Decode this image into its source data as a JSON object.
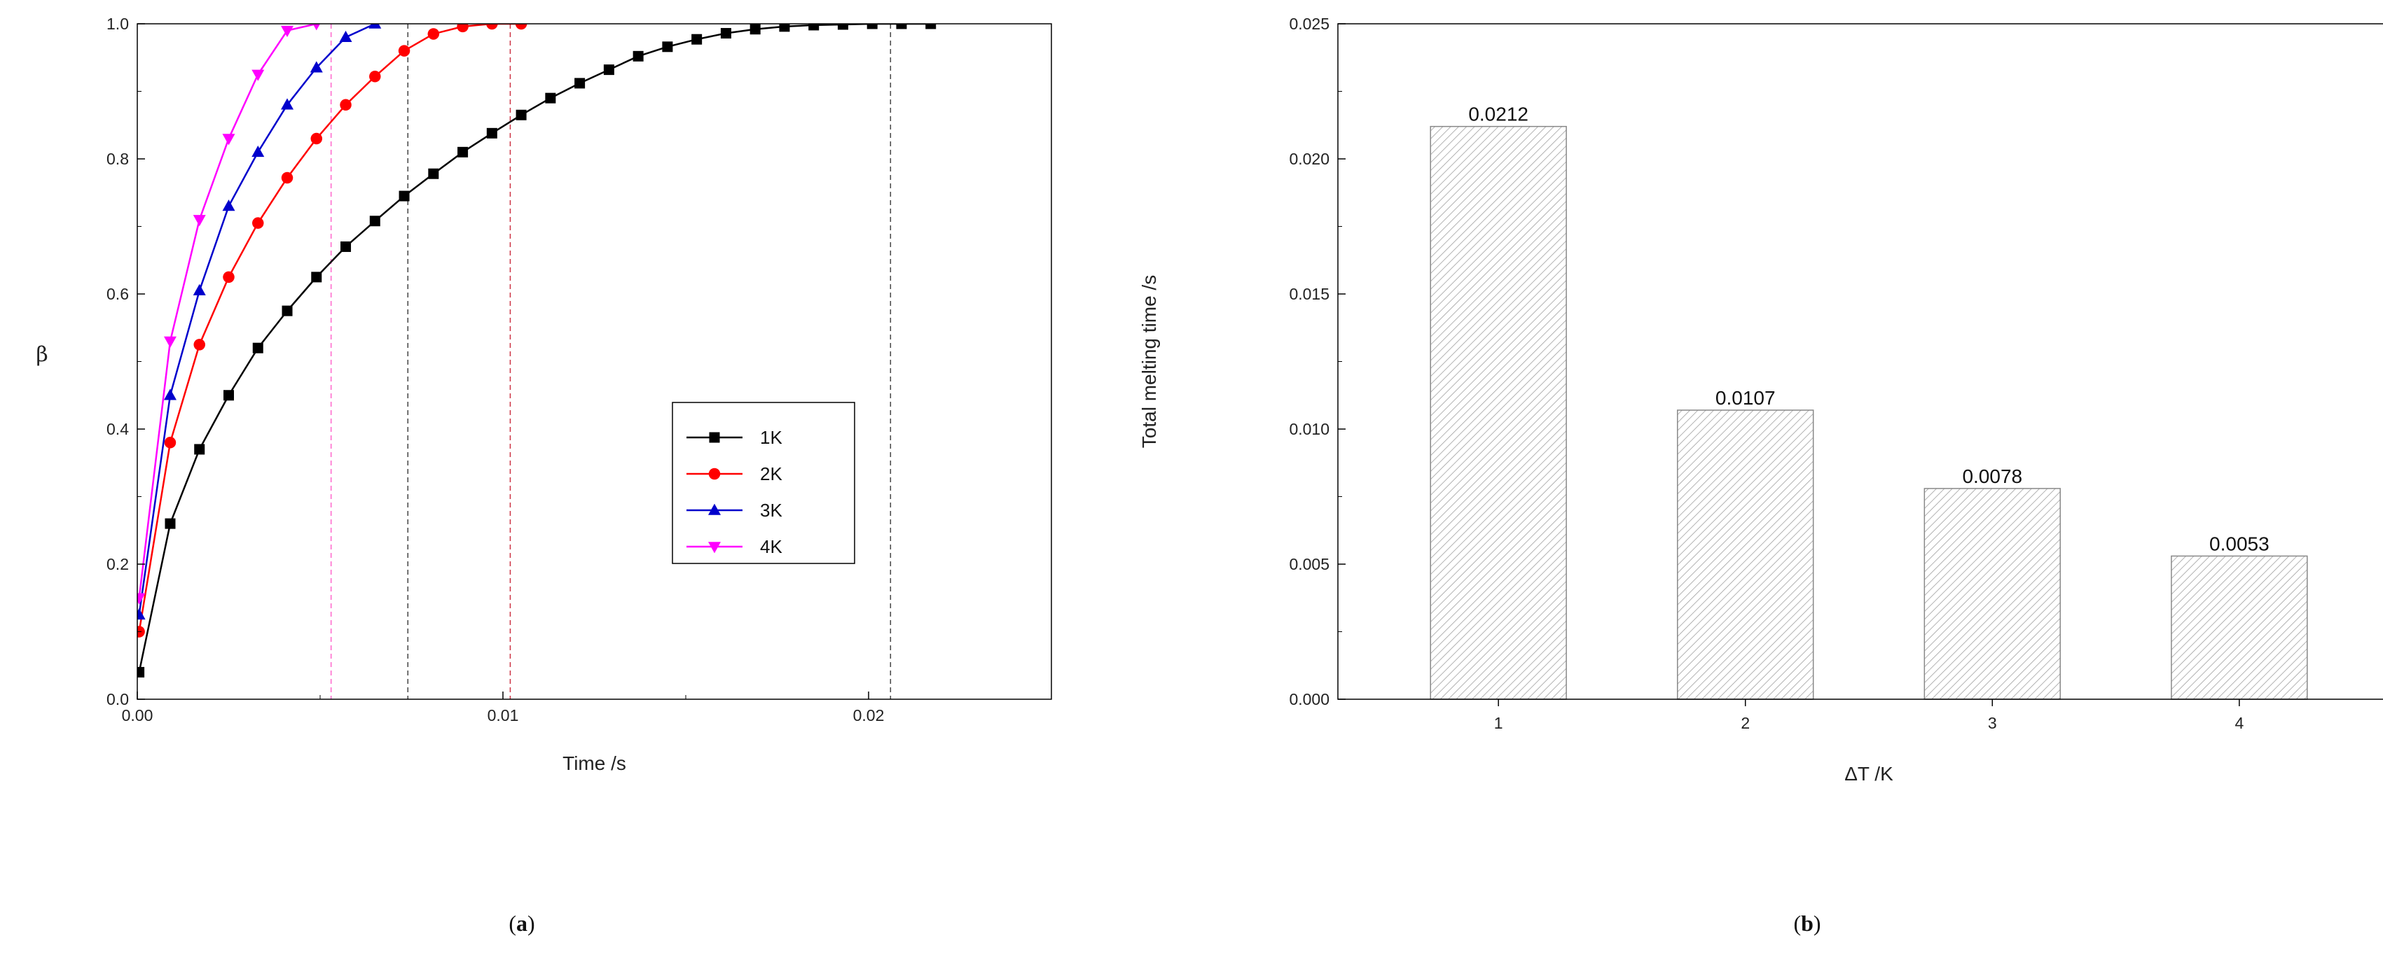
{
  "captions": {
    "a_open": "(",
    "a_letter": "a",
    "a_close": ")",
    "b_open": "(",
    "b_letter": "b",
    "b_close": ")"
  },
  "chart_data": [
    {
      "type": "line",
      "title": "",
      "xlabel": "Time /s",
      "ylabel": "β",
      "xlim": [
        0,
        0.025
      ],
      "ylim": [
        0,
        1.0
      ],
      "xticks": [
        "0.00",
        "0.01",
        "0.02"
      ],
      "yticks": [
        "0.0",
        "0.2",
        "0.4",
        "0.6",
        "0.8",
        "1.0"
      ],
      "legend_position": "bottom-right",
      "series": [
        {
          "name": "1K",
          "color": "#000000",
          "marker": "square",
          "x": [
            5e-05,
            0.0009,
            0.0017,
            0.0025,
            0.0033,
            0.0041,
            0.0049,
            0.0057,
            0.0065,
            0.0073,
            0.0081,
            0.0089,
            0.0097,
            0.0105,
            0.0113,
            0.0121,
            0.0129,
            0.0137,
            0.0145,
            0.0153,
            0.0161,
            0.0169,
            0.0177,
            0.0185,
            0.0193,
            0.0201,
            0.0209,
            0.0217
          ],
          "y": [
            0.04,
            0.26,
            0.37,
            0.45,
            0.52,
            0.575,
            0.625,
            0.67,
            0.708,
            0.745,
            0.778,
            0.81,
            0.838,
            0.865,
            0.89,
            0.912,
            0.932,
            0.952,
            0.966,
            0.977,
            0.986,
            0.992,
            0.996,
            0.998,
            0.999,
            1.0,
            1.0,
            1.0
          ]
        },
        {
          "name": "2K",
          "color": "#ff0000",
          "marker": "circle",
          "x": [
            5e-05,
            0.0009,
            0.0017,
            0.0025,
            0.0033,
            0.0041,
            0.0049,
            0.0057,
            0.0065,
            0.0073,
            0.0081,
            0.0089,
            0.0097,
            0.0105
          ],
          "y": [
            0.1,
            0.38,
            0.525,
            0.625,
            0.705,
            0.772,
            0.83,
            0.88,
            0.922,
            0.96,
            0.985,
            0.996,
            1.0,
            1.0
          ]
        },
        {
          "name": "3K",
          "color": "#0000cc",
          "marker": "triangle-up",
          "x": [
            5e-05,
            0.0009,
            0.0017,
            0.0025,
            0.0033,
            0.0041,
            0.0049,
            0.0057,
            0.0065
          ],
          "y": [
            0.125,
            0.45,
            0.605,
            0.73,
            0.81,
            0.88,
            0.935,
            0.98,
            1.0
          ]
        },
        {
          "name": "4K",
          "color": "#ff00ff",
          "marker": "triangle-down",
          "x": [
            5e-05,
            0.0009,
            0.0017,
            0.0025,
            0.0033,
            0.0041,
            0.0049
          ],
          "y": [
            0.15,
            0.53,
            0.71,
            0.83,
            0.925,
            0.99,
            1.0
          ]
        }
      ],
      "reference_lines": [
        {
          "x": 0.0053,
          "color": "#ff66cc",
          "style": "dashed"
        },
        {
          "x": 0.0074,
          "color": "#444444",
          "style": "dashed"
        },
        {
          "x": 0.0102,
          "color": "#cc3344",
          "style": "dashed"
        },
        {
          "x": 0.0206,
          "color": "#444444",
          "style": "dashed"
        }
      ]
    },
    {
      "type": "bar",
      "title": "",
      "xlabel": "ΔT /K",
      "ylabel": "Total melting time /s",
      "categories": [
        "1",
        "2",
        "3",
        "4"
      ],
      "values": [
        0.0212,
        0.0107,
        0.0078,
        0.0053
      ],
      "value_labels": [
        "0.0212",
        "0.0107",
        "0.0078",
        "0.0053"
      ],
      "ylim": [
        0,
        0.025
      ],
      "yticks": [
        "0.000",
        "0.005",
        "0.010",
        "0.015",
        "0.020",
        "0.025"
      ],
      "bar_fill": "hatched",
      "bar_color": "#888888"
    }
  ]
}
